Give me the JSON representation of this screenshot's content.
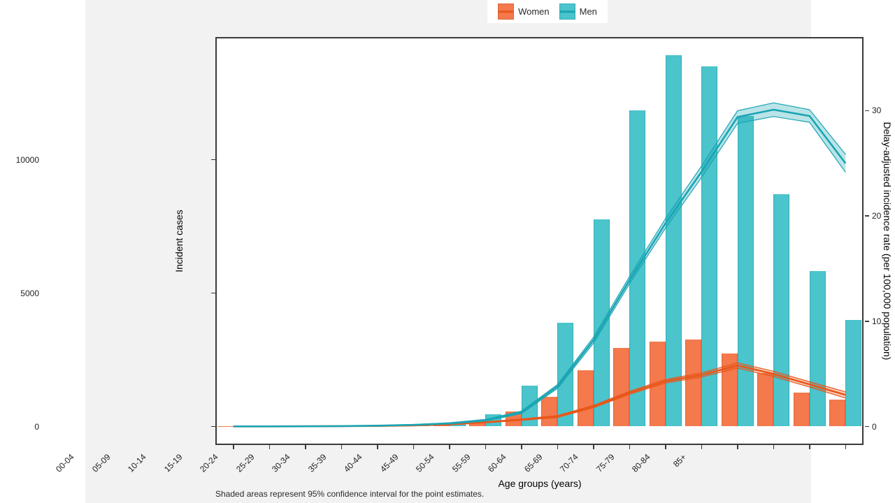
{
  "colors": {
    "page_background": "#ffffff",
    "figure_background": "#f2f2f2",
    "panel_background": "#ffffff",
    "panel_border": "#3a3a3a",
    "women_bar": "#F4794C",
    "women_bar_border": "#DE6437",
    "women_line": "#E8571B",
    "women_ribbon": "rgba(232,87,27,0.30)",
    "men_bar": "#4BC4CC",
    "men_bar_border": "#35AEB7",
    "men_line": "#1AA5B3",
    "men_ribbon": "rgba(26,165,179,0.30)"
  },
  "legend": {
    "items": [
      {
        "label": "Women",
        "swatch": "women"
      },
      {
        "label": "Men",
        "swatch": "men"
      }
    ]
  },
  "axes": {
    "left": {
      "title": "Incident cases",
      "tick_labels": [
        "0",
        "5000",
        "10000"
      ],
      "tick_values": [
        0,
        5000,
        10000
      ]
    },
    "right": {
      "title": "Delay-adjusted incidence rate (per 100,000 population)",
      "tick_labels": [
        "0",
        "10",
        "20",
        "30"
      ],
      "tick_values": [
        0,
        10,
        20,
        30
      ]
    },
    "x": {
      "title": "Age groups (years)"
    }
  },
  "footnote": "Shaded areas represent 95% confidence interval for the point estimates.",
  "chart_data": {
    "type": "bar+line combo (dual axis)",
    "categories": [
      "00-04",
      "05-09",
      "10-14",
      "15-19",
      "20-24",
      "25-29",
      "30-34",
      "35-39",
      "40-44",
      "45-49",
      "50-54",
      "55-59",
      "60-64",
      "65-69",
      "70-74",
      "75-79",
      "80-84",
      "85+"
    ],
    "bar_series": [
      {
        "name": "Women",
        "axis": "left",
        "unit": "incident cases",
        "values": [
          5,
          5,
          10,
          15,
          25,
          40,
          120,
          160,
          550,
          1100,
          2100,
          2950,
          3180,
          3260,
          2730,
          2000,
          1260,
          1000
        ]
      },
      {
        "name": "Men",
        "axis": "left",
        "unit": "incident cases",
        "values": [
          5,
          5,
          10,
          20,
          35,
          70,
          110,
          460,
          1520,
          3890,
          7770,
          11840,
          13920,
          13490,
          11630,
          8720,
          5830,
          3990
        ]
      }
    ],
    "line_series": [
      {
        "name": "Women",
        "axis": "right",
        "unit": "delay-adjusted incidence rate per 100,000",
        "values": [
          0.01,
          0.01,
          0.02,
          0.03,
          0.05,
          0.1,
          0.2,
          0.4,
          0.65,
          0.95,
          1.9,
          3.2,
          4.3,
          4.9,
          5.8,
          5.0,
          4.0,
          3.0
        ],
        "ci_half_width": [
          0.01,
          0.01,
          0.01,
          0.01,
          0.02,
          0.03,
          0.04,
          0.05,
          0.07,
          0.09,
          0.11,
          0.14,
          0.17,
          0.2,
          0.25,
          0.25,
          0.25,
          0.3
        ]
      },
      {
        "name": "Men",
        "axis": "right",
        "unit": "delay-adjusted incidence rate per 100,000",
        "values": [
          0.01,
          0.01,
          0.02,
          0.04,
          0.08,
          0.15,
          0.3,
          0.6,
          1.35,
          3.8,
          8.2,
          13.9,
          19.3,
          24.2,
          29.4,
          30.1,
          29.5,
          25.0
        ],
        "ci_half_width": [
          0.01,
          0.01,
          0.01,
          0.02,
          0.03,
          0.04,
          0.06,
          0.08,
          0.12,
          0.18,
          0.28,
          0.35,
          0.45,
          0.55,
          0.6,
          0.65,
          0.6,
          0.85
        ]
      }
    ],
    "left_ylim": [
      0,
      14600
    ],
    "right_ylim": [
      0,
      37
    ],
    "grid": false,
    "legend_position": "top-center",
    "ci_note": "shaded ribbons = 95% confidence interval"
  }
}
